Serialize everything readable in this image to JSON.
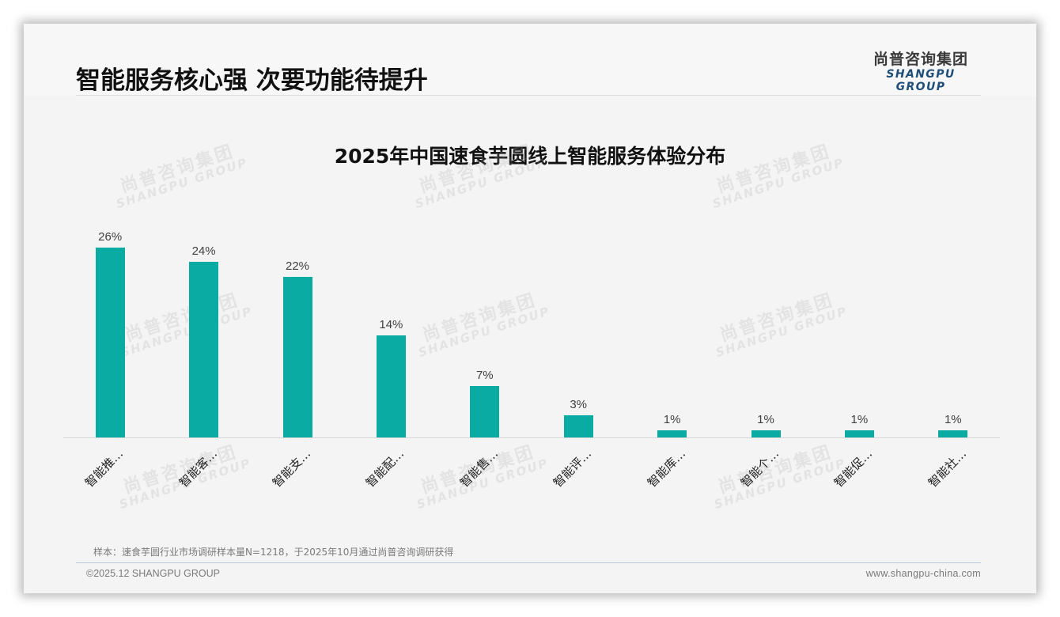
{
  "header": {
    "title": "智能服务核心强 次要功能待提升",
    "logo_cn": "尚普咨询集团",
    "logo_en": "SHANGPU GROUP"
  },
  "watermark": {
    "cn": "尚普咨询集团",
    "en": "SHANGPU GROUP"
  },
  "colors": {
    "bar": "#0aaba3",
    "logo_en": "#1f4e79"
  },
  "chart_data": {
    "type": "bar",
    "title": "2025年中国速食芋圆线上智能服务体验分布",
    "xlabel": "",
    "ylabel": "",
    "categories": [
      "智能推…",
      "智能客…",
      "智能支…",
      "智能配…",
      "智能售…",
      "智能评…",
      "智能库…",
      "智能个…",
      "智能促…",
      "智能社…"
    ],
    "values": [
      26,
      24,
      22,
      14,
      7,
      3,
      1,
      1,
      1,
      1
    ],
    "value_labels": [
      "26%",
      "24%",
      "22%",
      "14%",
      "7%",
      "3%",
      "1%",
      "1%",
      "1%",
      "1%"
    ],
    "unit": "%",
    "ylim": [
      0,
      30
    ],
    "grid": false,
    "legend": "none",
    "data_labels": true
  },
  "footer": {
    "footnote": "样本：速食芋圆行业市场调研样本量N=1218，于2025年10月通过尚普咨询调研获得",
    "copyright": "©2025.12 SHANGPU GROUP",
    "website": "www.shangpu-china.com"
  }
}
